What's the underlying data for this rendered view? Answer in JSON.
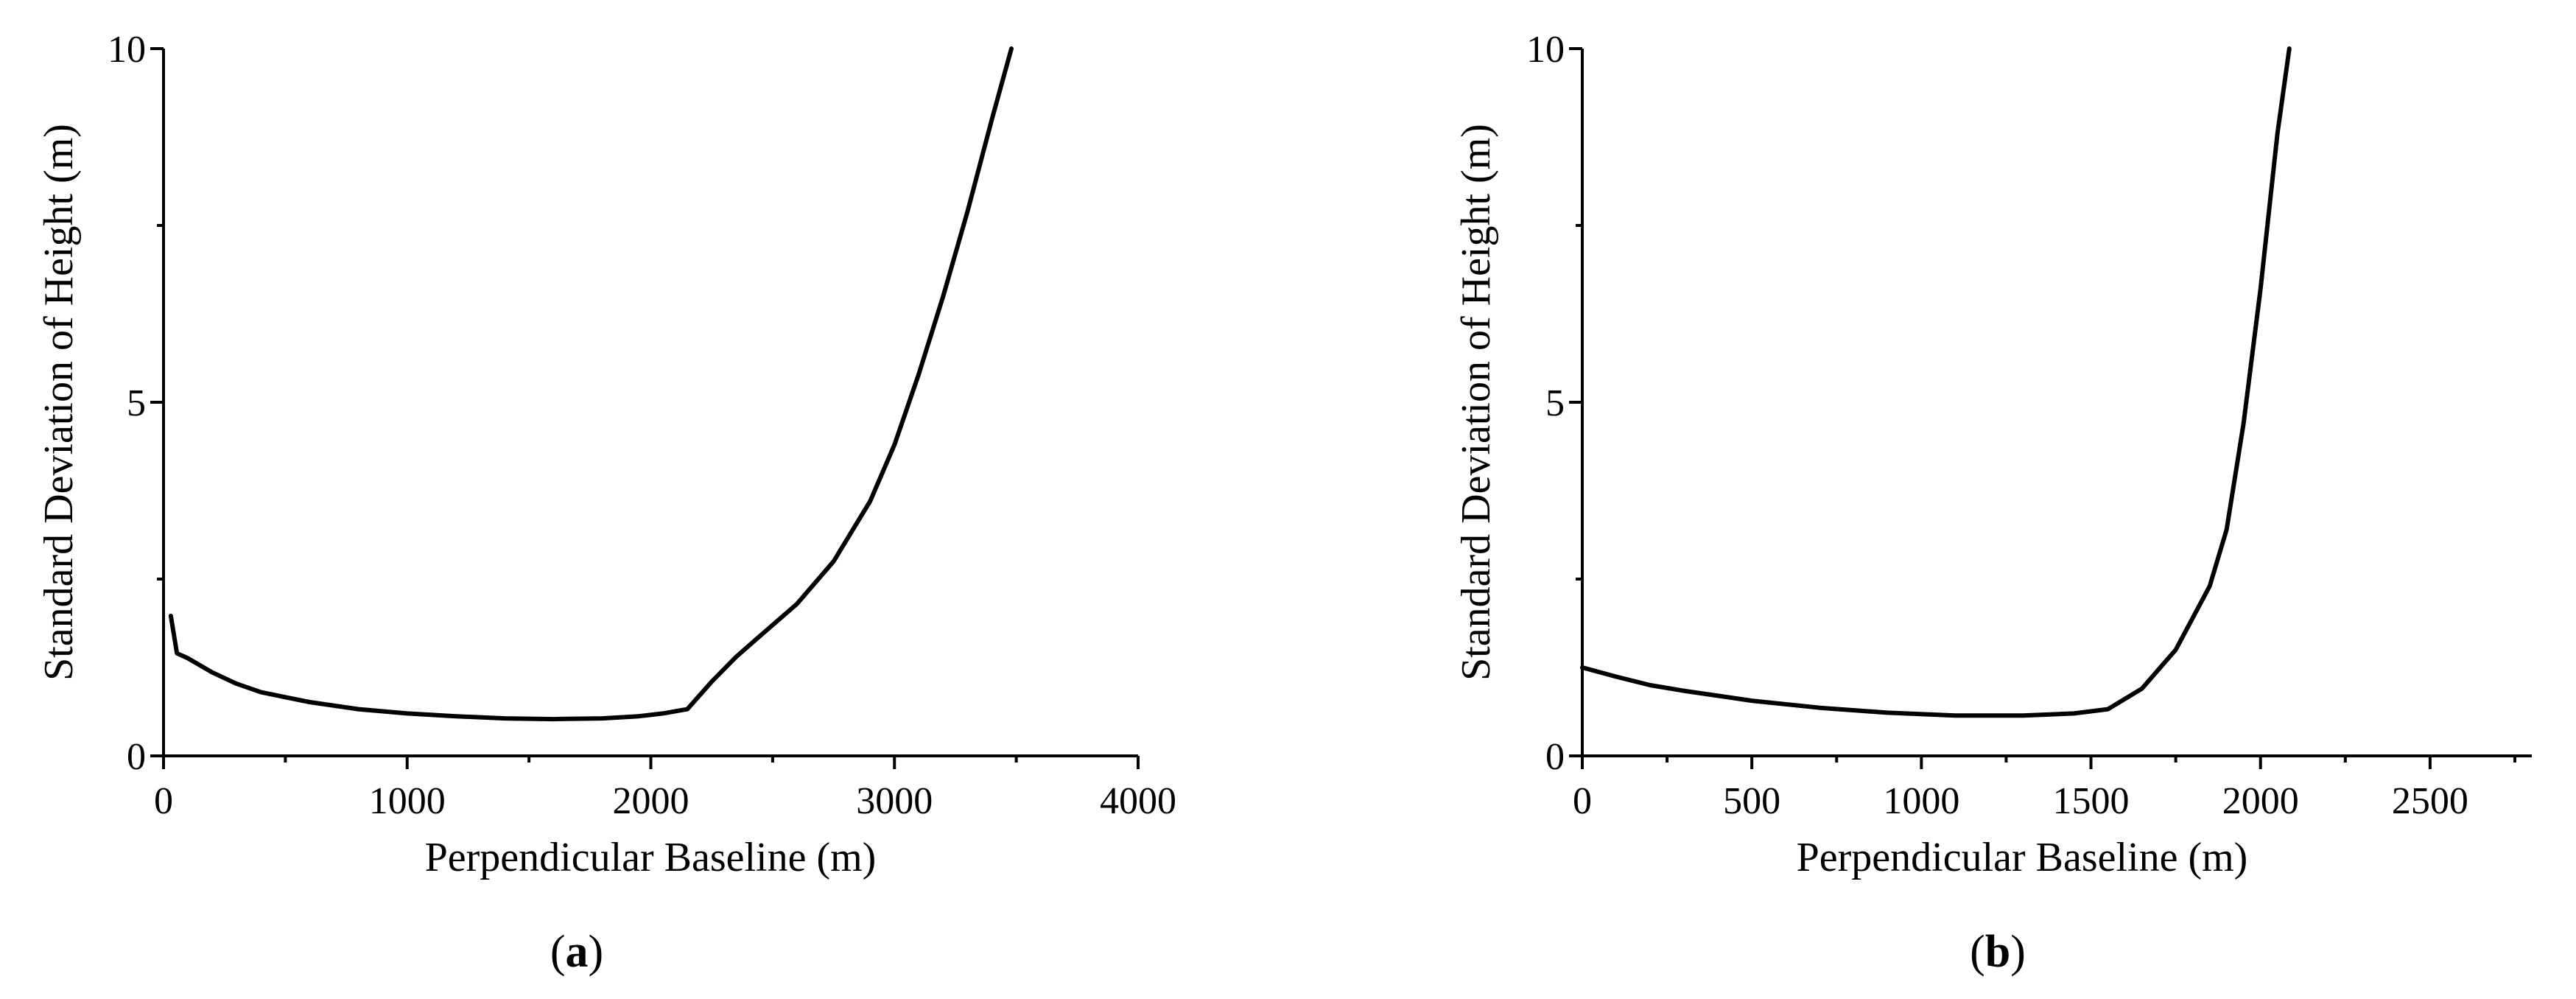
{
  "chart_data": [
    {
      "type": "line",
      "panel_label": "a",
      "xlabel": "Perpendicular Baseline (m)",
      "ylabel": "Standard Deviation of Height (m)",
      "xlim": [
        0,
        4000
      ],
      "ylim": [
        0,
        10
      ],
      "xticks": [
        0,
        1000,
        2000,
        3000,
        4000
      ],
      "xtick_labels": [
        "0",
        "1000",
        "2000",
        "3000",
        "4000"
      ],
      "xminor_step": 500,
      "yticks": [
        0,
        5,
        10
      ],
      "ytick_labels": [
        "0",
        "5",
        "10"
      ],
      "yminor_step": 2.5,
      "series": [
        {
          "name": "curve",
          "x": [
            30,
            55,
            100,
            200,
            300,
            400,
            600,
            800,
            1000,
            1200,
            1400,
            1600,
            1800,
            1950,
            2050,
            2150,
            2250,
            2350,
            2450,
            2600,
            2750,
            2900,
            3000,
            3100,
            3200,
            3300,
            3400,
            3480
          ],
          "y": [
            1.98,
            1.45,
            1.38,
            1.18,
            1.02,
            0.9,
            0.76,
            0.66,
            0.6,
            0.56,
            0.53,
            0.52,
            0.53,
            0.56,
            0.6,
            0.66,
            1.05,
            1.4,
            1.7,
            2.15,
            2.75,
            3.6,
            4.4,
            5.4,
            6.5,
            7.7,
            9.0,
            10.0
          ]
        }
      ]
    },
    {
      "type": "line",
      "panel_label": "b",
      "xlabel": "Perpendicular Baseline (m)",
      "ylabel": "Standard Deviation of Height (m)",
      "xlim": [
        0,
        2800
      ],
      "ylim": [
        0,
        10
      ],
      "xticks": [
        0,
        500,
        1000,
        1500,
        2000,
        2500
      ],
      "xtick_labels": [
        "0",
        "500",
        "1000",
        "1500",
        "2000",
        "2500"
      ],
      "xminor_step": 250,
      "yticks": [
        0,
        5,
        10
      ],
      "ytick_labels": [
        "0",
        "5",
        "10"
      ],
      "yminor_step": 2.5,
      "series": [
        {
          "name": "curve",
          "x": [
            0,
            100,
            200,
            300,
            400,
            500,
            700,
            900,
            1100,
            1300,
            1450,
            1550,
            1650,
            1750,
            1850,
            1900,
            1950,
            2000,
            2050,
            2085
          ],
          "y": [
            1.25,
            1.12,
            1.0,
            0.92,
            0.85,
            0.78,
            0.68,
            0.61,
            0.57,
            0.57,
            0.6,
            0.66,
            0.95,
            1.5,
            2.4,
            3.2,
            4.7,
            6.6,
            8.8,
            10.0
          ]
        }
      ]
    }
  ]
}
